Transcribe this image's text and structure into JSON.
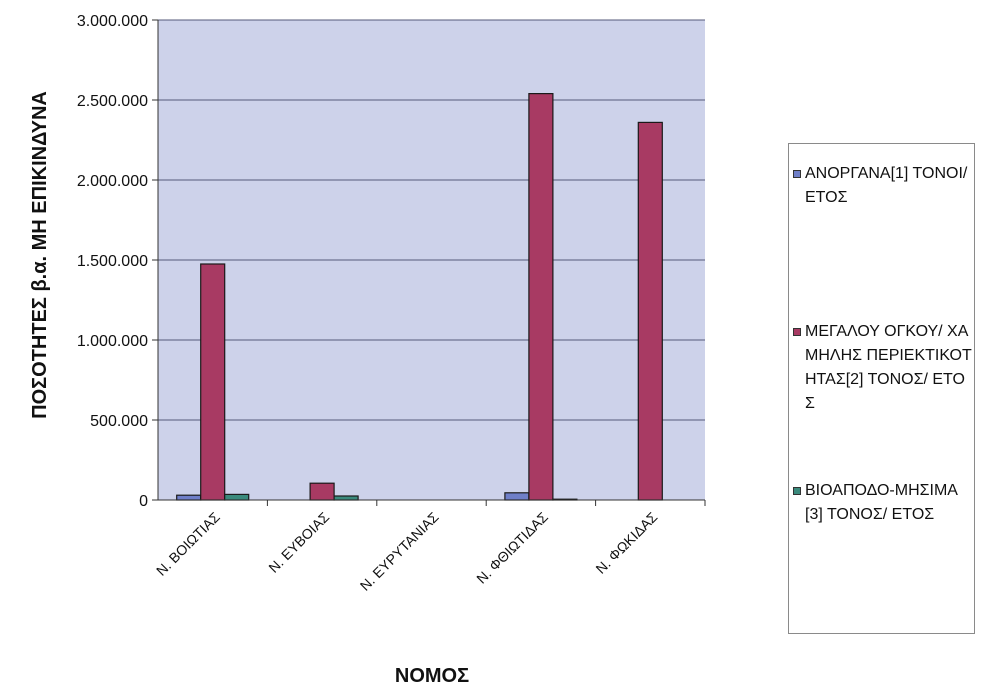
{
  "chart_data": {
    "type": "bar",
    "title": "",
    "xlabel": "ΝΟΜΟΣ",
    "ylabel": "ΠΟΣΟΤΗΤΕΣ β.α. ΜΗ ΕΠΙΚΙΝΔΥΝΑ",
    "ylim": [
      0,
      3000000
    ],
    "yticks": [
      0,
      500000,
      1000000,
      1500000,
      2000000,
      2500000,
      3000000
    ],
    "ytick_labels": [
      "0",
      "500.000",
      "1.000.000",
      "1.500.000",
      "2.000.000",
      "2.500.000",
      "3.000.000"
    ],
    "grid": true,
    "legend_position": "right",
    "categories": [
      "Ν. ΒΟΙΩΤΙΑΣ",
      "Ν. ΕΥΒΟΙΑΣ",
      "Ν. ΕΥΡΥΤΑΝΙΑΣ",
      "Ν. ΦΘΙΩΤΙΔΑΣ",
      "Ν. ΦΩΚΙΔΑΣ"
    ],
    "series": [
      {
        "name": "ΑΝΟΡΓΑΝΑ[1] ΤΟΝΟΙ/ ΕΤΟΣ",
        "color": "#6f7fc8",
        "values": [
          30000,
          0,
          0,
          45000,
          0
        ]
      },
      {
        "name": "ΜΕΓΑΛΟΥ ΟΓΚΟΥ/ ΧΑΜΗΛΗΣ ΠΕΡΙΕΚΤΙΚΟΤΗΤΑΣ[2] ΤΟΝΟΣ/ ΕΤΟΣ",
        "color": "#a83a63",
        "values": [
          1475000,
          105000,
          0,
          2540000,
          2360000
        ]
      },
      {
        "name": "ΒΙΟΑΠΟΔΟ-ΜΗΣΙΜΑ[3] ΤΟΝΟΣ/ ΕΤΟΣ",
        "color": "#3a8a7c",
        "values": [
          35000,
          25000,
          0,
          5000,
          0
        ]
      }
    ],
    "plot_background": "#cdd2ea",
    "grid_color": "#55597a"
  }
}
